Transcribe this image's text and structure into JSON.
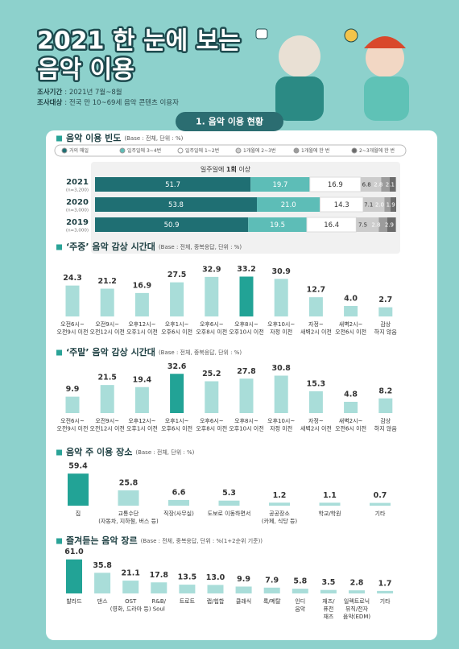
{
  "header": {
    "title_lines": [
      "2021 한 눈에 보는",
      "음악 이용"
    ],
    "survey": [
      {
        "label": "조사기간",
        "text": ": 2021년 7월~8월"
      },
      {
        "label": "조사대상",
        "text": ": 전국 만 10~69세 음악 콘텐츠 이용자"
      }
    ]
  },
  "section_title": "1. 음악 이용 현황",
  "chart_data": [
    {
      "type": "stacked_bar_h",
      "title": "음악 이용 빈도",
      "subtitle": "(Base : 전체, 단위 : %)",
      "annotation": {
        "before": "일주일에 ",
        "emphasis": "1회",
        "after": " 이상"
      },
      "categories": [
        "2021",
        "2020",
        "2019"
      ],
      "category_notes": [
        "(n=3,200)",
        "(n=3,000)",
        "(n=3,000)"
      ],
      "series": [
        {
          "name": "거의 매일",
          "color": "#1f6f73",
          "values": [
            51.7,
            53.8,
            50.9
          ]
        },
        {
          "name": "일주일에 3~4번",
          "color": "#5dbdb7",
          "values": [
            19.7,
            21.0,
            19.5
          ],
          "value_labels": [
            "19.7",
            "21.0",
            "19.5"
          ]
        },
        {
          "name": "일주일에 1~2번",
          "color": "#ffffff",
          "values": [
            16.9,
            14.3,
            16.4
          ]
        },
        {
          "name": "1개월에 2~3번",
          "color": "#cccccc",
          "values": [
            6.8,
            7.1,
            7.5
          ]
        },
        {
          "name": "1개월에 한 번",
          "color": "#9c9c9c",
          "values": [
            2.8,
            2.0,
            2.8
          ],
          "value_labels": [
            "2.8",
            "2.0",
            "2.8"
          ]
        },
        {
          "name": "2~3개월에 한 번",
          "color": "#6b6b6b",
          "values": [
            2.1,
            1.9,
            2.9
          ]
        }
      ]
    },
    {
      "type": "bar",
      "title": "‘주중’ 음악 감상 시간대",
      "subtitle": "(Base : 전체, 중복응답, 단위 : %)",
      "categories": [
        [
          "오전6시~",
          "오전9시 이전"
        ],
        [
          "오전9시~",
          "오전12시 이전"
        ],
        [
          "오후12시~",
          "오후1시 이전"
        ],
        [
          "오후1시~",
          "오후6시 이전"
        ],
        [
          "오후6시~",
          "오후8시 이전"
        ],
        [
          "오후8시~",
          "오후10시 이전"
        ],
        [
          "오후10시~",
          "자정 이전"
        ],
        [
          "자정~",
          "새벽2시 이전"
        ],
        [
          "새벽2시~",
          "오전6시 이전"
        ],
        [
          "감상",
          "하지 않음"
        ]
      ],
      "values": [
        24.3,
        21.2,
        16.9,
        27.5,
        32.9,
        33.2,
        30.9,
        12.7,
        4.0,
        2.7
      ],
      "value_labels": [
        "24.3",
        "21.2",
        "16.9",
        "27.5",
        "32.9",
        "33.2",
        "30.9",
        "12.7",
        "4.0",
        "2.7"
      ],
      "color": "#a9ddd9",
      "highlight_index": 5,
      "highlight_color": "#22a396"
    },
    {
      "type": "bar",
      "title": "‘주말’ 음악 감상 시간대",
      "subtitle": "(Base : 전체, 중복응답, 단위 : %)",
      "categories": [
        [
          "오전6시~",
          "오전9시 이전"
        ],
        [
          "오전9시~",
          "오전12시 이전"
        ],
        [
          "오후12시~",
          "오후1시 이전"
        ],
        [
          "오후1시~",
          "오후6시 이전"
        ],
        [
          "오후6시~",
          "오후8시 이전"
        ],
        [
          "오후8시~",
          "오후10시 이전"
        ],
        [
          "오후10시~",
          "자정 이전"
        ],
        [
          "자정~",
          "새벽2시 이전"
        ],
        [
          "새벽2시~",
          "오전6시 이전"
        ],
        [
          "감상",
          "하지 않음"
        ]
      ],
      "values": [
        9.9,
        21.5,
        19.4,
        32.6,
        25.2,
        27.8,
        30.8,
        15.3,
        4.8,
        8.2
      ],
      "color": "#a9ddd9",
      "highlight_index": 3,
      "highlight_color": "#22a396"
    },
    {
      "type": "bar",
      "title": "음악 주 이용 장소",
      "subtitle": "(Base : 전체, 단위 : %)",
      "categories": [
        [
          "집"
        ],
        [
          "교통수단",
          "(자동차, 지하철, 버스 등)"
        ],
        [
          "직장(사무실)"
        ],
        [
          "도보로 이동하면서"
        ],
        [
          "공공장소",
          "(카페, 식당 등)"
        ],
        [
          "학교/학원"
        ],
        [
          "기타"
        ]
      ],
      "values": [
        59.4,
        25.8,
        6.6,
        5.3,
        1.2,
        1.1,
        0.7
      ],
      "color": "#a9ddd9",
      "highlight_index": 0,
      "highlight_color": "#22a396"
    },
    {
      "type": "bar",
      "title": "즐겨듣는 음악 장르",
      "subtitle": "(Base : 전체, 중복응답, 단위 : %(1+2순위 기준))",
      "categories": [
        [
          "발라드"
        ],
        [
          "댄스"
        ],
        [
          "OST",
          "(영화, 드라마 등)"
        ],
        [
          "R&B/",
          "Soul"
        ],
        [
          "트로트"
        ],
        [
          "랩/힙합"
        ],
        [
          "클래식"
        ],
        [
          "록/메탈"
        ],
        [
          "인디",
          "음악"
        ],
        [
          "재즈/",
          "퓨전",
          "재즈"
        ],
        [
          "일렉트로닉",
          "뮤직/전자",
          "음악(EDM)"
        ],
        [
          "기타"
        ]
      ],
      "values": [
        61.0,
        35.8,
        21.1,
        17.8,
        13.5,
        13.0,
        9.9,
        7.9,
        5.8,
        3.5,
        2.8,
        1.7
      ],
      "value_labels": [
        "61.0",
        "35.8",
        "21.1",
        "17.8",
        "13.5",
        "13.0",
        "9.9",
        "7.9",
        "5.8",
        "3.5",
        "2.8",
        "1.7"
      ],
      "color": "#a9ddd9",
      "highlight_index": 0,
      "highlight_color": "#22a396"
    }
  ]
}
